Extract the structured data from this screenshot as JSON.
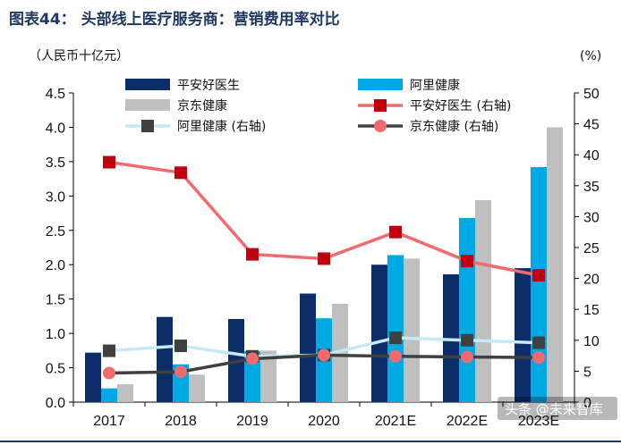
{
  "chart_data": {
    "type": "bar",
    "title": "图表44：  头部线上医疗服务商：营销费用率对比",
    "left_unit": "（人民币十亿元）",
    "right_unit": "(%)",
    "categories": [
      "2017",
      "2018",
      "2019",
      "2020",
      "2021E",
      "2022E",
      "2023E"
    ],
    "category_labels": [
      "2017",
      "2018",
      "2019",
      "2020",
      "2021E",
      "2022E",
      "2023E"
    ],
    "ylim": [
      0,
      4.5
    ],
    "y2lim": [
      0,
      50
    ],
    "yticks": [
      "0.0",
      "0.5",
      "1.0",
      "1.5",
      "2.0",
      "2.5",
      "3.0",
      "3.5",
      "4.0",
      "4.5"
    ],
    "y2ticks": [
      "0",
      "5",
      "10",
      "15",
      "20",
      "25",
      "30",
      "35",
      "40",
      "45",
      "50"
    ],
    "series": [
      {
        "name": "平安好医生",
        "kind": "bar",
        "axis": "left",
        "color": "#0b2e6b",
        "values": [
          0.72,
          1.24,
          1.21,
          1.58,
          2.0,
          1.86,
          1.95
        ]
      },
      {
        "name": "阿里健康",
        "kind": "bar",
        "axis": "left",
        "color": "#00a9e6",
        "values": [
          0.2,
          0.55,
          0.74,
          1.22,
          2.14,
          2.68,
          3.42
        ]
      },
      {
        "name": "京东健康",
        "kind": "bar",
        "axis": "left",
        "color": "#bfbfbf",
        "values": [
          0.26,
          0.4,
          0.75,
          1.43,
          2.09,
          2.94,
          4.0
        ]
      },
      {
        "name": "平安好医生 (右轴)",
        "kind": "line",
        "axis": "right",
        "color": "#f06a6e",
        "marker": "square",
        "marker_color": "#c0000e",
        "values": [
          38.8,
          37.1,
          23.9,
          23.2,
          27.5,
          22.8,
          20.5
        ]
      },
      {
        "name": "阿里健康 (右轴)",
        "kind": "line",
        "axis": "right",
        "color": "#c6e8f7",
        "marker": "square",
        "marker_color": "#404040",
        "values": [
          8.3,
          9.1,
          7.4,
          7.6,
          10.4,
          10.0,
          9.6
        ]
      },
      {
        "name": "京东健康 (右轴)",
        "kind": "line",
        "axis": "right",
        "color": "#404040",
        "marker": "circle",
        "marker_color": "#f06a6e",
        "values": [
          4.7,
          4.9,
          7.0,
          7.6,
          7.4,
          7.3,
          7.2
        ]
      }
    ],
    "legend": [
      "平安好医生",
      "阿里健康",
      "京东健康",
      "平安好医生 (右轴)",
      "阿里健康 (右轴)",
      "京东健康 (右轴)"
    ],
    "legend_position": "top",
    "grid": false
  },
  "watermark": "头条 @未来智库",
  "colors": {
    "title": "#1f3864",
    "axis": "#000000",
    "rule": "#1f3864"
  }
}
